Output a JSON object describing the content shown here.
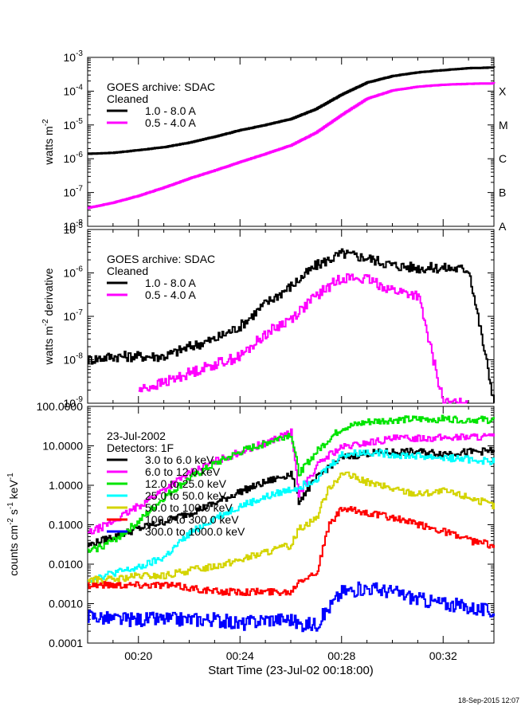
{
  "chart_data": [
    {
      "type": "line",
      "id": "flux",
      "ylabel": "watts m^-2",
      "yscale": "log",
      "ylim": [
        1e-08,
        0.001
      ],
      "ytick_labels": [
        {
          "base": "10",
          "exp": "-3"
        },
        {
          "base": "10",
          "exp": "-4"
        },
        {
          "base": "10",
          "exp": "-5"
        },
        {
          "base": "10",
          "exp": "-6"
        },
        {
          "base": "10",
          "exp": "-7"
        },
        {
          "base": "10",
          "exp": "-8"
        }
      ],
      "goes_classes": [
        "X",
        "M",
        "C",
        "B",
        "A"
      ],
      "legend_title": [
        "GOES archive: SDAC",
        "Cleaned"
      ],
      "x": [
        18,
        19,
        20,
        21,
        22,
        23,
        24,
        25,
        26,
        27,
        28,
        29,
        30,
        31,
        32,
        33,
        34
      ],
      "series": [
        {
          "name": "1.0 - 8.0 A",
          "color": "#000000",
          "values": [
            1.4e-06,
            1.5e-06,
            1.8e-06,
            2.2e-06,
            3e-06,
            4.5e-06,
            7e-06,
            1e-05,
            1.5e-05,
            3e-05,
            8e-05,
            0.00018,
            0.00028,
            0.00036,
            0.00042,
            0.00048,
            0.0005
          ]
        },
        {
          "name": "0.5 - 4.0 A",
          "color": "#ff00ff",
          "values": [
            3.5e-08,
            5e-08,
            8e-08,
            1.4e-07,
            2.6e-07,
            4.5e-07,
            8e-07,
            1.4e-06,
            2.5e-06,
            6e-06,
            2e-05,
            6e-05,
            0.000105,
            0.000135,
            0.000155,
            0.000165,
            0.00017
          ]
        }
      ]
    },
    {
      "type": "line",
      "id": "derivative",
      "ylabel": "watts m^-2 derivative",
      "yscale": "log",
      "ylim": [
        1e-09,
        1e-05
      ],
      "ytick_labels": [
        {
          "base": "10",
          "exp": "-5"
        },
        {
          "base": "10",
          "exp": "-6"
        },
        {
          "base": "10",
          "exp": "-7"
        },
        {
          "base": "10",
          "exp": "-8"
        },
        {
          "base": "10",
          "exp": "-9"
        }
      ],
      "legend_title": [
        "GOES archive: SDAC",
        "Cleaned"
      ],
      "x": [
        18,
        19,
        20,
        21,
        22,
        23,
        24,
        25,
        26,
        27,
        28,
        29,
        30,
        31,
        32,
        33,
        34
      ],
      "series": [
        {
          "name": "1.0 - 8.0 A",
          "color": "#000000",
          "values": [
            1e-08,
            1.2e-08,
            1.2e-08,
            1.2e-08,
            2e-08,
            3e-08,
            6e-08,
            2e-07,
            5e-07,
            1.5e-06,
            2.8e-06,
            2.2e-06,
            1.5e-06,
            1.3e-06,
            1.3e-06,
            1.2e-06,
            1e-09
          ]
        },
        {
          "name": "0.5 - 4.0 A",
          "color": "#ff00ff",
          "values": [
            null,
            null,
            2e-09,
            3e-09,
            5e-09,
            8e-09,
            1.2e-08,
            4e-08,
            9e-08,
            3e-07,
            8e-07,
            7e-07,
            4e-07,
            3e-07,
            1e-09,
            1e-09,
            null
          ]
        }
      ]
    },
    {
      "type": "line",
      "id": "rhessi",
      "ylabel": "counts cm^-2 s^-1 keV^-1",
      "yscale": "log",
      "ylim": [
        0.0001,
        100
      ],
      "ytick_labels": [
        "100.0000",
        "10.0000",
        "1.0000",
        "0.1000",
        "0.0100",
        "0.0010",
        "0.0001"
      ],
      "legend_title": [
        "23-Jul-2002",
        "Detectors: 1F"
      ],
      "xlabel": "Start Time (23-Jul-02 00:18:00)",
      "xtick_labels": [
        "00:20",
        "00:24",
        "00:28",
        "00:32"
      ],
      "xlim": [
        18,
        34
      ],
      "x": [
        18,
        19,
        20,
        21,
        22,
        23,
        24,
        25,
        26,
        26.3,
        27,
        27.5,
        28,
        29,
        30,
        31,
        32,
        33,
        34
      ],
      "series": [
        {
          "name": "3.0 to 6.0 keV",
          "color": "#000000",
          "values": [
            0.03,
            0.05,
            0.08,
            0.12,
            0.2,
            0.35,
            0.7,
            1.2,
            2,
            0.4,
            1.5,
            3,
            5,
            6.5,
            7,
            7,
            6.5,
            7,
            7.5
          ]
        },
        {
          "name": "6.0 to 12.0 keV",
          "color": "#ff00ff",
          "values": [
            0.06,
            0.12,
            0.3,
            0.8,
            2,
            4,
            7,
            12,
            22,
            0.6,
            3,
            6,
            9,
            12,
            15,
            16,
            16,
            17,
            17
          ]
        },
        {
          "name": "12.0 to 25.0 keV",
          "color": "#00e400",
          "values": [
            0.02,
            0.04,
            0.12,
            0.5,
            1.5,
            3.5,
            7,
            12,
            20,
            2,
            7,
            15,
            28,
            40,
            45,
            47,
            48,
            46,
            45
          ]
        },
        {
          "name": "25.0 to 50.0 keV",
          "color": "#00ffff",
          "values": [
            0.004,
            0.006,
            0.008,
            0.015,
            0.06,
            0.15,
            0.3,
            0.5,
            0.8,
            0.9,
            1.5,
            3,
            6,
            7,
            6,
            5.5,
            5,
            4.5,
            4
          ]
        },
        {
          "name": "50.0 to 100.0 keV",
          "color": "#d4d400",
          "values": [
            0.004,
            0.004,
            0.005,
            0.005,
            0.007,
            0.009,
            0.013,
            0.02,
            0.03,
            0.08,
            0.15,
            0.9,
            2,
            1.2,
            0.8,
            0.6,
            0.7,
            0.5,
            0.3
          ]
        },
        {
          "name": "100.0 to 300.0 keV",
          "color": "#ff0000",
          "values": [
            0.003,
            0.003,
            0.003,
            0.003,
            0.0025,
            0.002,
            0.002,
            0.002,
            0.002,
            0.004,
            0.006,
            0.1,
            0.25,
            0.2,
            0.15,
            0.1,
            0.07,
            0.04,
            0.03
          ]
        },
        {
          "name": "300.0 to 1000.0 keV",
          "color": "#0000ff",
          "values": [
            0.0005,
            0.0004,
            0.0004,
            0.0004,
            0.0004,
            0.0004,
            0.0003,
            0.0004,
            0.0004,
            0.0003,
            0.0003,
            0.0008,
            0.002,
            0.0025,
            0.002,
            0.0013,
            0.001,
            0.0008,
            0.0006
          ]
        }
      ]
    }
  ],
  "timestamp": "18-Sep-2015 12:07"
}
